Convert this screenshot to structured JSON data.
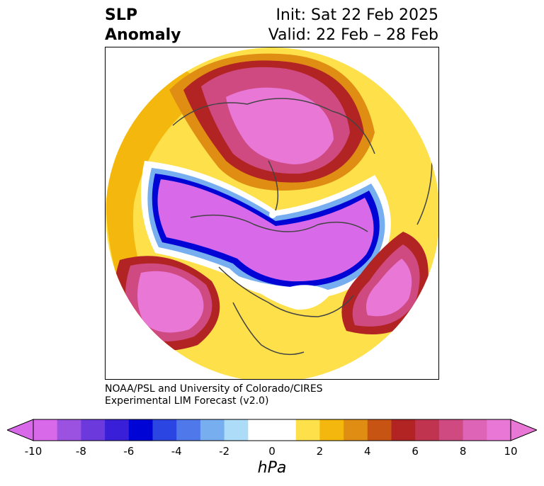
{
  "title": {
    "left_line1": "SLP",
    "left_line2": "Anomaly",
    "right_line1": "Init: Sat 22 Feb 2025",
    "right_line2": "Valid: 22 Feb – 28 Feb"
  },
  "credit": {
    "line1": "NOAA/PSL and University of Colorado/CIRES",
    "line2": "Experimental LIM Forecast (v2.0)"
  },
  "colorbar": {
    "unit_label": "hPa",
    "tick_labels": [
      "-10",
      "-8",
      "-6",
      "-4",
      "-2",
      "0",
      "2",
      "4",
      "6",
      "8",
      "10"
    ],
    "colors": [
      "#d869e8",
      "#9b52e0",
      "#6b39dc",
      "#3a1fd8",
      "#0005d6",
      "#2b45e2",
      "#4f79ea",
      "#77aef0",
      "#acdcf8",
      "#ffffff",
      "#ffffff",
      "#fde04a",
      "#f3b70d",
      "#e08d14",
      "#c85414",
      "#b22424",
      "#c03450",
      "#d04a82",
      "#dd64b6",
      "#e877d6"
    ]
  },
  "map": {
    "projection": "north-polar-stereographic",
    "features": [
      "positive-anomaly-arctic-russia",
      "negative-anomaly-north-atlantic-eurasia",
      "negative-anomaly-north-america",
      "positive-anomaly-north-pacific",
      "positive-anomaly-atlantic-east"
    ]
  }
}
